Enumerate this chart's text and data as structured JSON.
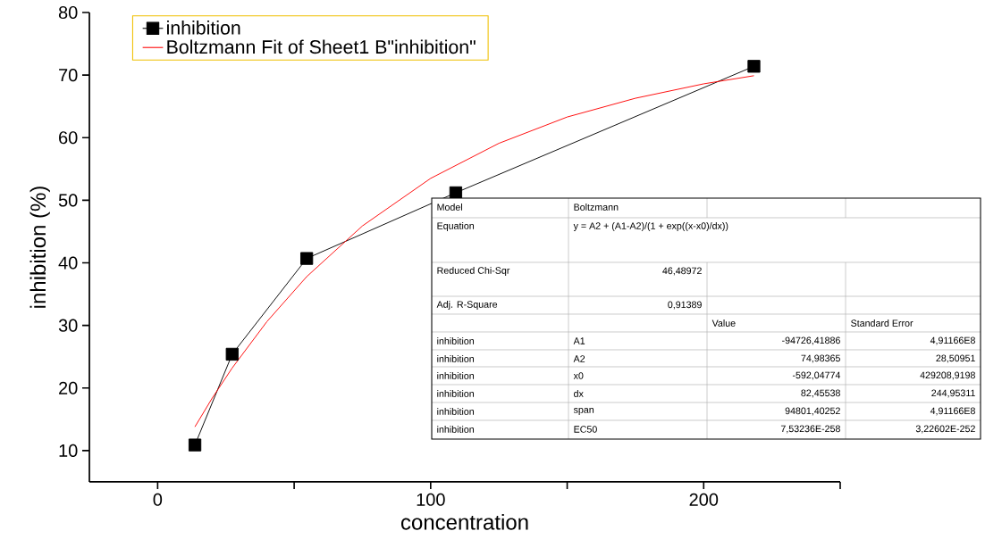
{
  "chart_data": {
    "type": "line",
    "xlabel": "concentration",
    "ylabel": "inhibition (%)",
    "xlim": [
      -25,
      250
    ],
    "ylim": [
      5,
      80
    ],
    "xticks": [
      0,
      {
        "value": 50,
        "label": null
      },
      100,
      {
        "value": 150,
        "label": null
      },
      200,
      {
        "value": 250,
        "label": null
      }
    ],
    "yticks": [
      10,
      20,
      30,
      40,
      50,
      60,
      70,
      80
    ],
    "legend": "top left",
    "marker": "square",
    "line_style": "solid",
    "series": [
      {
        "name": "inhibition",
        "color": "#000000",
        "x": [
          13.65,
          27.3,
          54.6,
          109.2,
          218.4
        ],
        "values": [
          10.9,
          25.4,
          40.7,
          51.2,
          71.4
        ]
      },
      {
        "name": "Boltzmann Fit of Sheet1 B\"inhibition\"",
        "color": "#ff0000",
        "marker": "none",
        "x": [
          13.65,
          20,
          27.3,
          40,
          54.6,
          75,
          100,
          125,
          150,
          175,
          200,
          218.4
        ],
        "values": [
          13.8,
          18.4,
          23.2,
          30.6,
          37.8,
          45.9,
          53.5,
          59.1,
          63.3,
          66.3,
          68.6,
          69.9
        ]
      }
    ],
    "annotations": [
      "Model",
      "Boltzmann",
      "Equation",
      "y = A2 + (A1-A2)/(1 + exp((x-x0)/dx))",
      "Reduced Chi-Sqr",
      "46,48972",
      "Adj. R-Square",
      "0,91389",
      "Value",
      "Standard Error",
      "inhibition",
      "A1",
      "-94726,41886",
      "4,91166E8",
      "inhibition",
      "A2",
      "74,98365",
      "28,50951",
      "inhibition",
      "x0",
      "-592,04774",
      "429208,9198",
      "inhibition",
      "dx",
      "82,45538",
      "244,95311",
      "inhibition",
      "span",
      "94801,40252",
      "4,91166E8",
      "inhibition",
      "EC50",
      "7,53236E-258",
      "3,22602E-252"
    ]
  }
}
